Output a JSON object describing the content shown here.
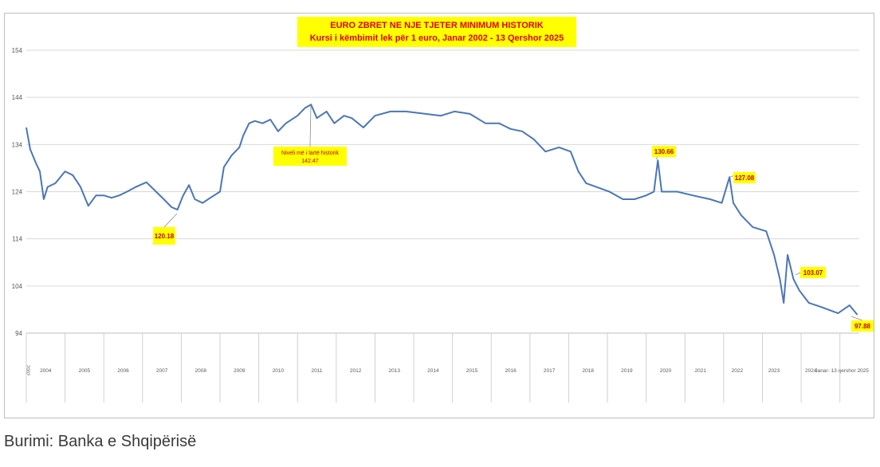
{
  "chart_data": {
    "type": "line",
    "title": "EURO ZBRET NE NJE TJETER MINIMUM HISTORIK",
    "subtitle": "Kursi i këmbimit lek për 1 euro, Janar 2002 - 13 Qershor 2025",
    "ylim": [
      94,
      154
    ],
    "yticks": [
      94,
      104,
      114,
      124,
      134,
      144,
      154
    ],
    "xlim": [
      2004,
      2025.5
    ],
    "xticks": [
      {
        "value": 2004.0,
        "label": "2002"
      },
      {
        "value": 2004.5,
        "label": "2004"
      },
      {
        "value": 2005.5,
        "label": "2005"
      },
      {
        "value": 2006.5,
        "label": "2006"
      },
      {
        "value": 2007.5,
        "label": "2007"
      },
      {
        "value": 2008.5,
        "label": "2008"
      },
      {
        "value": 2009.5,
        "label": "2009"
      },
      {
        "value": 2010.5,
        "label": "2010"
      },
      {
        "value": 2011.5,
        "label": "2011"
      },
      {
        "value": 2012.5,
        "label": "2012"
      },
      {
        "value": 2013.5,
        "label": "2013"
      },
      {
        "value": 2014.5,
        "label": "2014"
      },
      {
        "value": 2015.5,
        "label": "2015"
      },
      {
        "value": 2016.5,
        "label": "2016"
      },
      {
        "value": 2017.5,
        "label": "2017"
      },
      {
        "value": 2018.5,
        "label": "2018"
      },
      {
        "value": 2019.5,
        "label": "2019"
      },
      {
        "value": 2020.5,
        "label": "2020"
      },
      {
        "value": 2021.4,
        "label": "2021"
      },
      {
        "value": 2022.35,
        "label": "2022"
      },
      {
        "value": 2023.3,
        "label": "2023"
      },
      {
        "value": 2024.25,
        "label": "2024"
      },
      {
        "value": 2025.05,
        "label": "Janar- 13 qershor 2025"
      }
    ],
    "grid": true,
    "series": [
      {
        "name": "Kursi i këmbimit",
        "color": "#4a76b8",
        "x": [
          2004.0,
          2004.1,
          2004.25,
          2004.35,
          2004.45,
          2004.55,
          2004.75,
          2005.0,
          2005.2,
          2005.4,
          2005.6,
          2005.8,
          2006.0,
          2006.2,
          2006.4,
          2006.6,
          2006.8,
          2007.1,
          2007.35,
          2007.55,
          2007.75,
          2007.9,
          2008.05,
          2008.2,
          2008.35,
          2008.55,
          2008.75,
          2009.0,
          2009.1,
          2009.3,
          2009.5,
          2009.6,
          2009.75,
          2009.9,
          2010.1,
          2010.3,
          2010.5,
          2010.7,
          2011.0,
          2011.2,
          2011.35,
          2011.5,
          2011.75,
          2011.95,
          2012.2,
          2012.4,
          2012.7,
          2013.0,
          2013.4,
          2013.8,
          2014.2,
          2014.7,
          2015.05,
          2015.45,
          2015.85,
          2016.2,
          2016.5,
          2016.8,
          2017.1,
          2017.4,
          2017.75,
          2018.05,
          2018.25,
          2018.45,
          2018.75,
          2019.05,
          2019.4,
          2019.7,
          2020.0,
          2020.2,
          2020.3,
          2020.4,
          2020.8,
          2021.2,
          2021.65,
          2021.95,
          2022.15,
          2022.25,
          2022.45,
          2022.75,
          2023.1,
          2023.3,
          2023.45,
          2023.55,
          2023.65,
          2023.8,
          2023.95,
          2024.2,
          2024.5,
          2024.95,
          2025.25,
          2025.45
        ],
        "values": [
          137.6,
          133,
          130,
          128.3,
          122.4,
          125,
          125.8,
          128.3,
          127.5,
          125,
          121,
          123.2,
          123.2,
          122.7,
          123.2,
          124,
          124.9,
          126,
          124,
          122.4,
          120.7,
          120.18,
          123.2,
          125.4,
          122.4,
          121.6,
          122.7,
          124,
          129.2,
          131.7,
          133.4,
          135.9,
          138.5,
          139,
          138.5,
          139.3,
          136.8,
          138.5,
          140.1,
          141.8,
          142.47,
          139.6,
          141,
          138.5,
          140.1,
          139.6,
          137.6,
          140.1,
          141,
          141,
          140.6,
          140.1,
          141,
          140.5,
          138.5,
          138.5,
          137.3,
          136.8,
          135.1,
          132.5,
          133.4,
          132.5,
          128.3,
          125.8,
          124.9,
          124,
          122.4,
          122.4,
          123.2,
          124,
          130.66,
          124,
          124,
          123.2,
          122.4,
          121.6,
          127.08,
          121.6,
          119,
          116.5,
          115.6,
          110.6,
          105.5,
          100.4,
          110.6,
          105.5,
          103.07,
          100.4,
          99.6,
          98.2,
          99.9,
          97.88
        ]
      }
    ],
    "annotations": [
      {
        "label": "Niveli më i lartë historik",
        "value": 142.47
      },
      {
        "value": 120.18
      },
      {
        "value": 130.66
      },
      {
        "value": 127.08
      },
      {
        "value": 103.07
      },
      {
        "value": 97.88
      }
    ]
  },
  "caption": "Burimi: Banka e Shqipërisë"
}
